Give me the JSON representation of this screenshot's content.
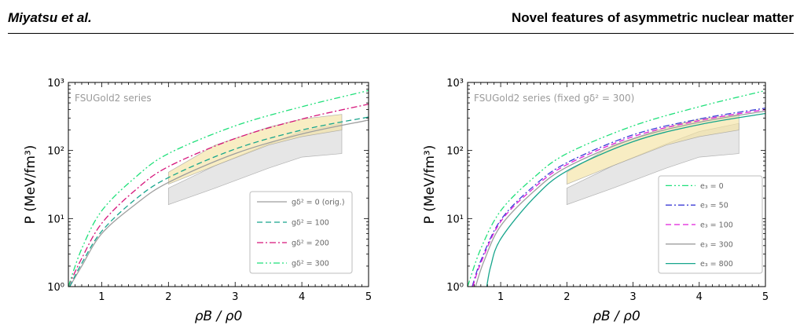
{
  "header": {
    "left": "Miyatsu et al.",
    "right": "Novel features of asymmetric nuclear matter"
  },
  "chart_data": [
    {
      "type": "line",
      "annotation": "FSUGold2 series",
      "xlabel": "ρB / ρ0",
      "ylabel": "P (MeV/fm³)",
      "xlim": [
        0.5,
        5
      ],
      "ylim": [
        1,
        1000
      ],
      "yscale": "log",
      "x_ticks": [
        1,
        2,
        3,
        4,
        5
      ],
      "y_ticks": [
        "10⁰",
        "10¹",
        "10²",
        "10³"
      ],
      "legend_position": "lower-right",
      "series": [
        {
          "name": "gδ² = 0 (orig.)",
          "color": "#9e9e9e",
          "dash": "solid",
          "x": [
            0.52,
            0.7,
            1.0,
            1.5,
            2.0,
            3.0,
            4.0,
            5.0
          ],
          "y": [
            1.0,
            2.0,
            6.0,
            16,
            34,
            90,
            175,
            280
          ]
        },
        {
          "name": "gδ² = 100",
          "color": "#17a58c",
          "dash": "dashed",
          "x": [
            0.52,
            0.7,
            1.0,
            1.5,
            2.0,
            3.0,
            4.0,
            5.0
          ],
          "y": [
            1.0,
            2.2,
            6.5,
            19,
            40,
            105,
            200,
            310
          ]
        },
        {
          "name": "gδ² = 200",
          "color": "#d6157b",
          "dash": "dashdot",
          "x": [
            0.5,
            0.7,
            1.0,
            1.5,
            2.0,
            3.0,
            4.0,
            5.0
          ],
          "y": [
            1.0,
            2.6,
            8.5,
            26,
            58,
            150,
            290,
            480
          ]
        },
        {
          "name": "gδ² = 300",
          "color": "#1fe07a",
          "dash": "dashdotdot",
          "x": [
            0.5,
            0.7,
            1.0,
            1.5,
            2.0,
            3.0,
            4.0,
            5.0
          ],
          "y": [
            1.0,
            3.6,
            13,
            40,
            90,
            230,
            440,
            760
          ]
        }
      ],
      "bands": [
        {
          "color": "#d9d9d9",
          "x": [
            2.0,
            2.7,
            3.5,
            4.0,
            4.6
          ],
          "lower": [
            16,
            28,
            55,
            80,
            90
          ],
          "upper": [
            28,
            60,
            125,
            190,
            250
          ]
        },
        {
          "color": "#f5e4a3",
          "x": [
            2.0,
            2.7,
            3.5,
            4.0,
            4.6
          ],
          "lower": [
            32,
            60,
            120,
            160,
            200
          ],
          "upper": [
            48,
            120,
            220,
            290,
            340
          ]
        }
      ]
    },
    {
      "type": "line",
      "annotation": "FSUGold2 series (fixed gδ² = 300)",
      "xlabel": "ρB / ρ0",
      "ylabel": "P (MeV/fm³)",
      "xlim": [
        0.5,
        5
      ],
      "ylim": [
        1,
        1000
      ],
      "yscale": "log",
      "x_ticks": [
        1,
        2,
        3,
        4,
        5
      ],
      "y_ticks": [
        "10⁰",
        "10¹",
        "10²",
        "10³"
      ],
      "legend_position": "lower-right",
      "series": [
        {
          "name": "e₃ = 0",
          "color": "#1fe07a",
          "dash": "dashdotdot",
          "x": [
            0.5,
            0.7,
            1.0,
            1.5,
            2.0,
            3.0,
            4.0,
            5.0
          ],
          "y": [
            1.0,
            3.6,
            13,
            40,
            90,
            230,
            440,
            760
          ]
        },
        {
          "name": "e₃ = 50",
          "color": "#3d3dd6",
          "dash": "dashdot",
          "x": [
            0.57,
            0.7,
            1.0,
            1.5,
            2.0,
            3.0,
            4.0,
            5.0
          ],
          "y": [
            1.0,
            2.4,
            9.5,
            30,
            66,
            170,
            290,
            420
          ]
        },
        {
          "name": "e₃ = 100",
          "color": "#e01fd9",
          "dash": "dashed",
          "x": [
            0.58,
            0.7,
            1.0,
            1.5,
            2.0,
            3.0,
            4.0,
            5.0
          ],
          "y": [
            1.0,
            2.2,
            9.0,
            28,
            62,
            160,
            275,
            400
          ]
        },
        {
          "name": "e₃ = 300",
          "color": "#9e9e9e",
          "dash": "solid",
          "x": [
            0.62,
            0.75,
            1.0,
            1.5,
            2.0,
            3.0,
            4.0,
            5.0
          ],
          "y": [
            1.0,
            2.4,
            7.8,
            25,
            57,
            148,
            260,
            380
          ]
        },
        {
          "name": "e₃ = 800",
          "color": "#17a58c",
          "dash": "solid",
          "x": [
            0.79,
            0.85,
            1.0,
            1.5,
            2.0,
            3.0,
            4.0,
            5.0
          ],
          "y": [
            1.0,
            2.0,
            5.0,
            20,
            50,
            135,
            240,
            350
          ]
        }
      ],
      "bands": [
        {
          "color": "#d9d9d9",
          "x": [
            2.0,
            2.7,
            3.5,
            4.0,
            4.6
          ],
          "lower": [
            16,
            28,
            55,
            80,
            90
          ],
          "upper": [
            28,
            60,
            125,
            190,
            250
          ]
        },
        {
          "color": "#f5e4a3",
          "x": [
            2.0,
            2.7,
            3.5,
            4.0,
            4.6
          ],
          "lower": [
            32,
            60,
            120,
            160,
            200
          ],
          "upper": [
            48,
            120,
            220,
            290,
            340
          ]
        }
      ]
    }
  ]
}
